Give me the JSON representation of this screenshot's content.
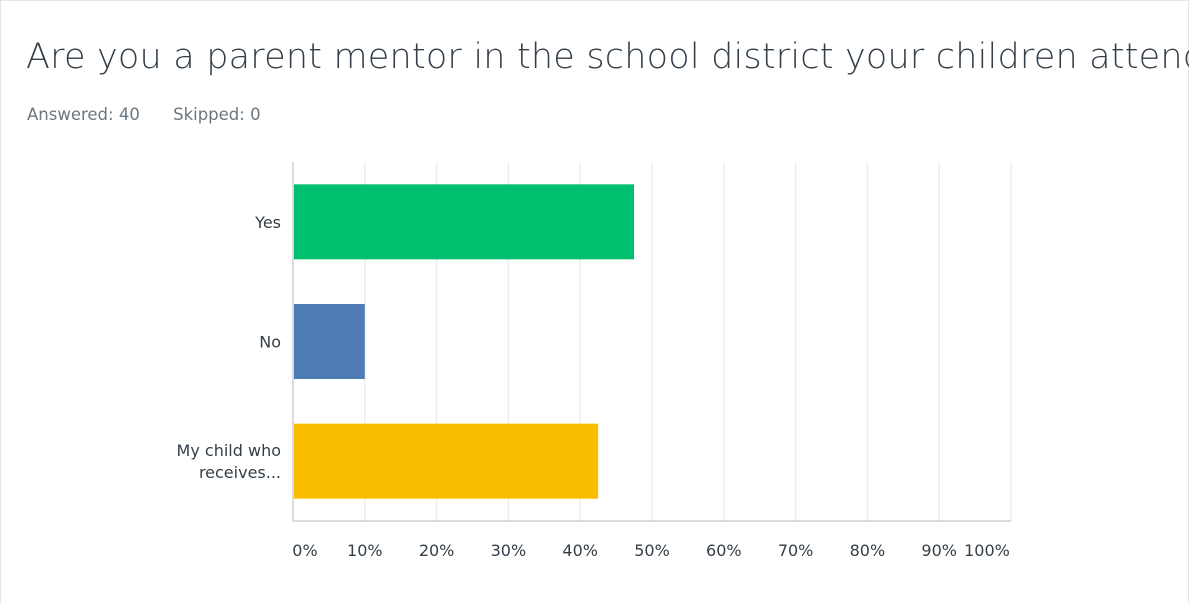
{
  "question": {
    "title": "Are you a parent mentor in the school district your children attend",
    "answered": "Answered: 40",
    "skipped": "Skipped: 0"
  },
  "chart_data": {
    "type": "bar",
    "orientation": "horizontal",
    "categories": [
      [
        "Yes"
      ],
      [
        "No"
      ],
      [
        "My child who",
        "receives..."
      ]
    ],
    "values": [
      47.5,
      10,
      42.5
    ],
    "colors": [
      "#00bf6f",
      "#507cb6",
      "#f9be00"
    ],
    "xlim": [
      0,
      100
    ],
    "xticks": [
      "0%",
      "10%",
      "20%",
      "30%",
      "40%",
      "50%",
      "60%",
      "70%",
      "80%",
      "90%",
      "100%"
    ],
    "grid": true
  }
}
